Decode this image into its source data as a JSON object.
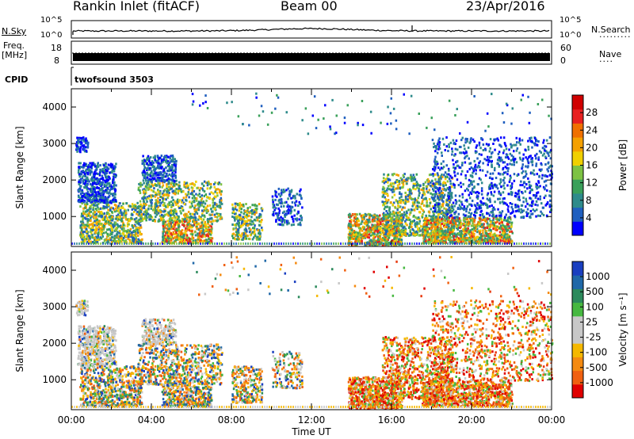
{
  "header": {
    "station": "Rankin Inlet (fitACF)",
    "beam": "Beam 00",
    "date": "23/Apr/2016"
  },
  "top_panels": {
    "nsky_label": "N.Sky",
    "nsky_ticks": [
      "10^5",
      "10^0"
    ],
    "nsearch_label": "N.Search",
    "nsearch_ticks": [
      "10^5",
      "10^0"
    ],
    "freq_label": "Freq.",
    "freq_unit": "[MHz]",
    "freq_ticks": [
      "18",
      "8"
    ],
    "nave_label": "Nave",
    "nave_ticks": [
      "60",
      "0"
    ],
    "cpid_label": "CPID",
    "cpid_value": "twofsound 3503"
  },
  "chart_data": [
    {
      "type": "heatmap",
      "panel": "power",
      "ylabel": "Slant Range [km]",
      "y_ticks": [
        1000,
        2000,
        3000,
        4000
      ],
      "ylim": [
        180,
        4500
      ],
      "x_ticks": [
        "00:00",
        "04:00",
        "08:00",
        "12:00",
        "16:00",
        "20:00",
        "00:00"
      ],
      "xlim_hours": [
        0,
        24
      ],
      "colorbar": {
        "label": "Power [dB]",
        "ticks": [
          "4",
          "8",
          "12",
          "16",
          "20",
          "24",
          "28"
        ],
        "colors": [
          "#0000ff",
          "#1f5fbf",
          "#2e8b8b",
          "#3aa05a",
          "#7dc243",
          "#f0d000",
          "#f5a000",
          "#f07000",
          "#e82020",
          "#d00000"
        ]
      }
    },
    {
      "type": "heatmap",
      "panel": "velocity",
      "xlabel": "Time UT",
      "ylabel": "Slant Range [km]",
      "y_ticks": [
        1000,
        2000,
        3000,
        4000
      ],
      "ylim": [
        180,
        4500
      ],
      "x_ticks": [
        "00:00",
        "04:00",
        "08:00",
        "12:00",
        "16:00",
        "20:00",
        "00:00"
      ],
      "xlim_hours": [
        0,
        24
      ],
      "colorbar": {
        "label": "Velocity [m s⁻¹]",
        "ticks": [
          "1000",
          "500",
          "100",
          "25",
          "-25",
          "-100",
          "-500",
          "-1000"
        ],
        "colors": [
          "#1a3fc0",
          "#2068a8",
          "#2c8a5c",
          "#46b840",
          "#c8c8c8",
          "#c8c8c8",
          "#f5b800",
          "#f58a10",
          "#f06010",
          "#e00000"
        ]
      }
    }
  ]
}
